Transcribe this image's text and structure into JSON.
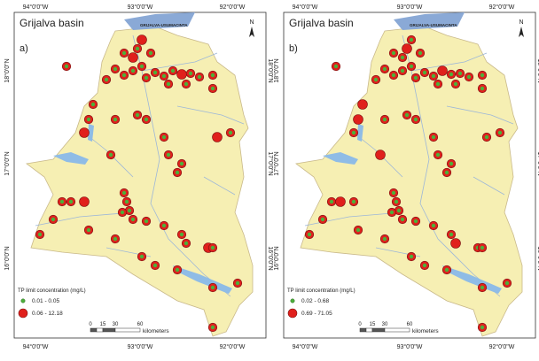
{
  "panels": [
    {
      "title": "Grijalva basin",
      "label": "a)",
      "river_label": "GRIJALVA-USUMACINTA",
      "north": "N",
      "lon_labels": [
        "94°0'0\"W",
        "93°0'0\"W",
        "92°0'0\"W"
      ],
      "lat_labels": [
        "18°0'0\"N",
        "17°0'0\"N",
        "16°0'0\"N"
      ],
      "legend": {
        "title": "TP limit concentration (mg/L)",
        "items": [
          "0.01 - 0.05",
          "0.06 - 12.18"
        ]
      },
      "scale": {
        "ticks": [
          "0",
          "15",
          "30",
          "60"
        ],
        "unit": "kilometers"
      }
    },
    {
      "title": "Grijalva basin",
      "label": "b)",
      "river_label": "GRIJALVA-USUMACINTA",
      "north": "N",
      "lon_labels": [
        "94°0'0\"W",
        "93°0'0\"W",
        "92°0'0\"W"
      ],
      "lat_labels": [
        "18°0'0\"N",
        "17°0'0\"N",
        "16°0'0\"N"
      ],
      "legend": {
        "title": "TP limit concentration (mg/L)",
        "items": [
          "0.02 - 0.68",
          "0.69 - 71.05"
        ]
      },
      "scale": {
        "ticks": [
          "0",
          "15",
          "30",
          "60"
        ],
        "unit": "kilometers"
      }
    }
  ]
}
